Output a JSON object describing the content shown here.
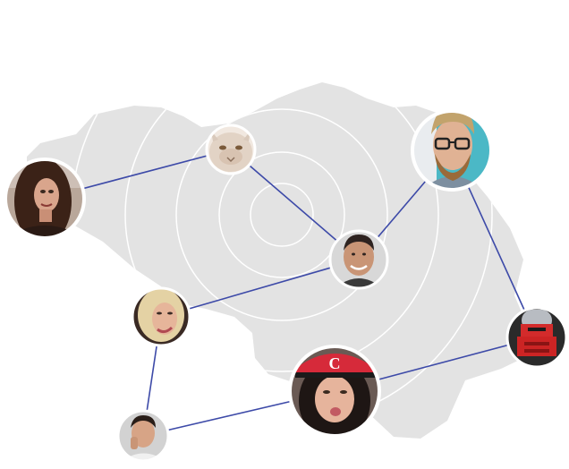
{
  "colors": {
    "background": "#ffffff",
    "map_fill": "#e3e3e3",
    "ring_stroke": "#ffffff",
    "connector": "#3d4aa8",
    "avatar_border": "#ffffff"
  },
  "avatars": [
    {
      "id": "woman-dark-hair",
      "icon": "person-avatar-icon"
    },
    {
      "id": "persian-cat",
      "icon": "cat-avatar-icon"
    },
    {
      "id": "bearded-man-glasses",
      "icon": "person-avatar-icon"
    },
    {
      "id": "smiling-man",
      "icon": "person-avatar-icon"
    },
    {
      "id": "blonde-woman",
      "icon": "person-avatar-icon"
    },
    {
      "id": "robot-helmet",
      "icon": "robot-avatar-icon"
    },
    {
      "id": "woman-red-cap",
      "icon": "person-avatar-icon"
    },
    {
      "id": "young-man",
      "icon": "person-avatar-icon"
    }
  ],
  "connections": [
    [
      "woman-dark-hair",
      "persian-cat"
    ],
    [
      "persian-cat",
      "smiling-man"
    ],
    [
      "smiling-man",
      "bearded-man-glasses"
    ],
    [
      "bearded-man-glasses",
      "robot-helmet"
    ],
    [
      "smiling-man",
      "blonde-woman"
    ],
    [
      "blonde-woman",
      "young-man"
    ],
    [
      "young-man",
      "woman-red-cap"
    ],
    [
      "woman-red-cap",
      "robot-helmet"
    ]
  ]
}
